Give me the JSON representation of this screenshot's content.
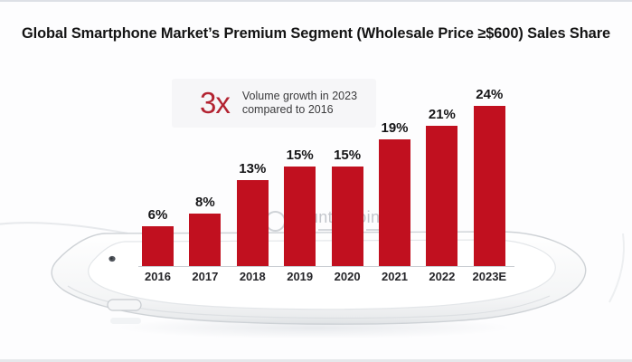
{
  "title": "Global Smartphone Market’s Premium Segment (Wholesale Price ≥$600) Sales Share",
  "annotation": {
    "multiplier": "3x",
    "line1": "Volume growth in 2023",
    "line2": "compared to 2016"
  },
  "watermark": {
    "text": "Counterpoint"
  },
  "chart_data": {
    "type": "bar",
    "title": "Global Smartphone Market’s Premium Segment (Wholesale Price ≥$600) Sales Share",
    "categories": [
      "2016",
      "2017",
      "2018",
      "2019",
      "2020",
      "2021",
      "2022",
      "2023E"
    ],
    "values": [
      6,
      8,
      13,
      15,
      15,
      19,
      21,
      24
    ],
    "value_labels": [
      "6%",
      "8%",
      "13%",
      "15%",
      "15%",
      "19%",
      "21%",
      "24%"
    ],
    "unit": "%",
    "xlabel": "",
    "ylabel": "",
    "ylim": [
      0,
      26
    ],
    "grid": false,
    "legend": "none",
    "bar_color": "#c1101f",
    "annotation_text": "3x Volume growth in 2023 compared to 2016"
  },
  "colors": {
    "bar": "#c1101f",
    "accent_red": "#b32331",
    "title_text": "#141414",
    "axis_line": "#c9cdd2",
    "year_text": "#26262a",
    "watermark_gray": "#bdc1c7"
  }
}
